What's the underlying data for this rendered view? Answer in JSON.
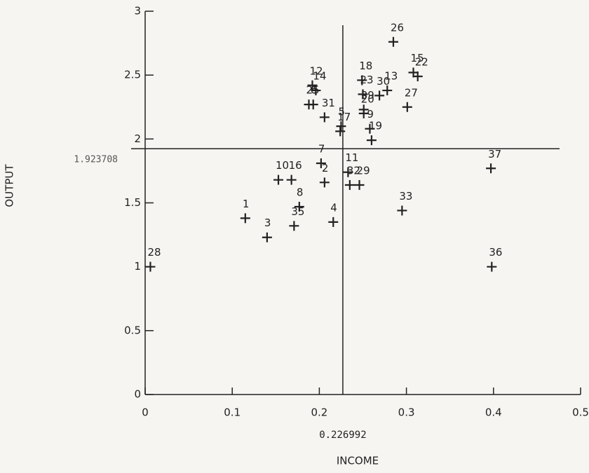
{
  "chart_data": {
    "type": "scatter",
    "x_label": "INCOME",
    "y_label": "OUTPUT",
    "xlim": [
      0,
      0.5
    ],
    "ylim": [
      0,
      3
    ],
    "xticks": [
      0,
      0.1,
      0.2,
      0.3,
      0.4,
      0.5
    ],
    "yticks": [
      0,
      0.5,
      1,
      1.5,
      2,
      2.5,
      3
    ],
    "vline": 0.226992,
    "hline": 1.923708,
    "color": "#222222",
    "labels": [
      "28",
      "1",
      "3",
      "35",
      "8",
      "10",
      "16",
      "2",
      "7",
      "4",
      "12",
      "14",
      "25",
      "6",
      "31",
      "5",
      "17",
      "11",
      "32",
      "29",
      "18",
      "23",
      "39",
      "20",
      "30",
      "13",
      "9",
      "19",
      "26",
      "15",
      "22",
      "27",
      "33",
      "37",
      "36"
    ],
    "x": [
      0.006,
      0.115,
      0.14,
      0.171,
      0.177,
      0.153,
      0.168,
      0.206,
      0.202,
      0.216,
      0.192,
      0.196,
      0.188,
      0.193,
      0.206,
      0.225,
      0.224,
      0.233,
      0.235,
      0.246,
      0.249,
      0.25,
      0.251,
      0.251,
      0.269,
      0.278,
      0.258,
      0.26,
      0.285,
      0.308,
      0.313,
      0.301,
      0.295,
      0.397,
      0.398
    ],
    "y": [
      1.0,
      1.38,
      1.23,
      1.32,
      1.47,
      1.68,
      1.68,
      1.66,
      1.81,
      1.35,
      2.42,
      2.38,
      2.27,
      2.27,
      2.17,
      2.1,
      2.06,
      1.74,
      1.64,
      1.64,
      2.46,
      2.35,
      2.23,
      2.2,
      2.34,
      2.38,
      2.08,
      1.99,
      2.76,
      2.52,
      2.49,
      2.25,
      1.44,
      1.77,
      1.0
    ]
  }
}
